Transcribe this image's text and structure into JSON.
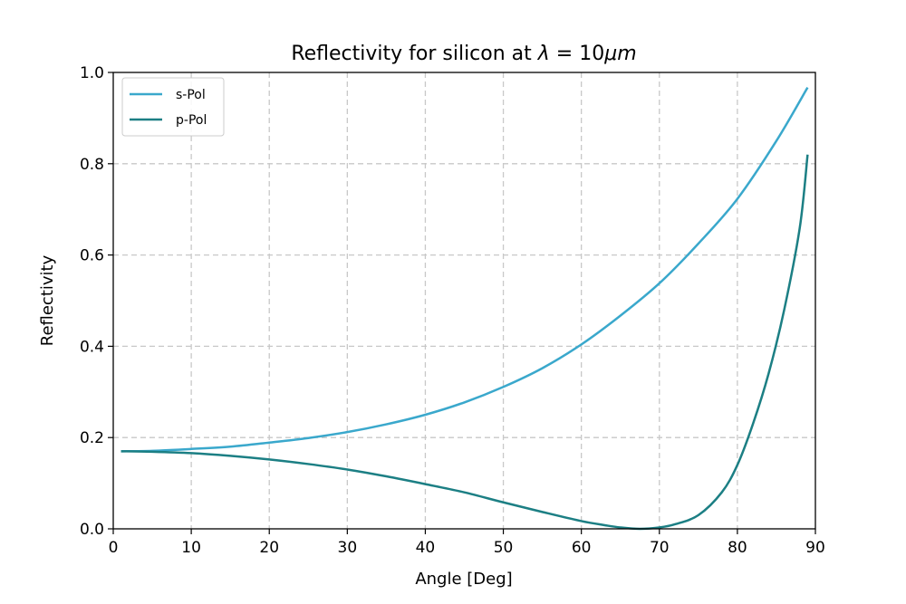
{
  "chart_data": {
    "type": "line",
    "title": "Reflectivity for silicon at λ = 10μm",
    "title_parts": {
      "prefix": "Reflectivity for silicon at ",
      "symbol": "λ",
      "equals": " = 10",
      "unit": "μm"
    },
    "xlabel": "Angle [Deg]",
    "ylabel": "Reflectivity",
    "xlim": [
      0,
      90
    ],
    "ylim": [
      0,
      1
    ],
    "xticks": [
      0,
      10,
      20,
      30,
      40,
      50,
      60,
      70,
      80,
      90
    ],
    "yticks": [
      0.0,
      0.2,
      0.4,
      0.6,
      0.8,
      1.0
    ],
    "ytick_labels": [
      "0.0",
      "0.2",
      "0.4",
      "0.6",
      "0.8",
      "1.0"
    ],
    "grid": true,
    "legend_position": "top-left",
    "series": [
      {
        "name": "s-Pol",
        "color": "#3aa8cc",
        "x": [
          1,
          5,
          10,
          15,
          20,
          25,
          30,
          35,
          40,
          45,
          50,
          55,
          60,
          65,
          70,
          75,
          80,
          85,
          89
        ],
        "y": [
          0.17,
          0.171,
          0.175,
          0.18,
          0.189,
          0.199,
          0.212,
          0.229,
          0.25,
          0.277,
          0.311,
          0.352,
          0.404,
          0.467,
          0.538,
          0.625,
          0.723,
          0.85,
          0.967
        ]
      },
      {
        "name": "p-Pol",
        "color": "#1c7f84",
        "x": [
          1,
          5,
          10,
          15,
          20,
          25,
          30,
          35,
          40,
          45,
          50,
          55,
          60,
          63,
          65,
          67.5,
          70,
          72,
          75,
          78,
          80,
          82,
          84,
          86,
          88,
          89
        ],
        "y": [
          0.17,
          0.169,
          0.166,
          0.16,
          0.152,
          0.142,
          0.13,
          0.115,
          0.098,
          0.08,
          0.058,
          0.037,
          0.017,
          0.008,
          0.003,
          0.0,
          0.003,
          0.01,
          0.03,
          0.08,
          0.14,
          0.23,
          0.34,
          0.48,
          0.66,
          0.82
        ]
      }
    ]
  }
}
